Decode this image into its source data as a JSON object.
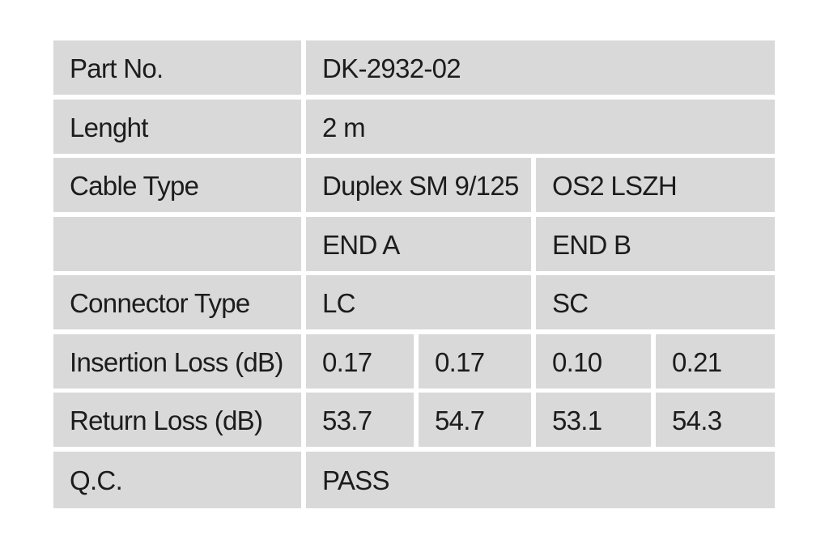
{
  "spec_table": {
    "rows": [
      {
        "label": "Part No.",
        "value": "DK-2932-02"
      },
      {
        "label": "Lenght",
        "value": "2 m"
      },
      {
        "label": "Cable Type",
        "end_a": "Duplex SM 9/125",
        "end_b": "OS2 LSZH"
      },
      {
        "label": "",
        "end_a": "END A",
        "end_b": "END B"
      },
      {
        "label": "Connector Type",
        "end_a": "LC",
        "end_b": "SC"
      },
      {
        "label": "Insertion Loss (dB)",
        "end_a_1": "0.17",
        "end_a_2": "0.17",
        "end_b_1": "0.10",
        "end_b_2": "0.21"
      },
      {
        "label": "Return Loss (dB)",
        "end_a_1": "53.7",
        "end_a_2": "54.7",
        "end_b_1": "53.1",
        "end_b_2": "54.3"
      },
      {
        "label": "Q.C.",
        "value": "PASS"
      }
    ]
  },
  "colors": {
    "cell_background": "#d9d9d9",
    "table_gap": "#ffffff",
    "text": "#1c1c1c"
  }
}
